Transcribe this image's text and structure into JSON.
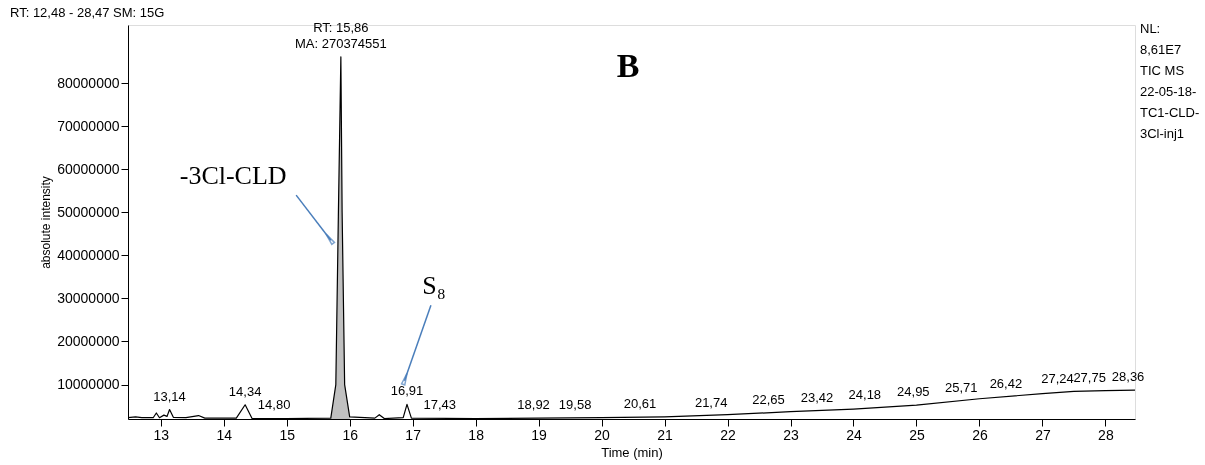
{
  "chart_data": {
    "type": "line",
    "xlabel": "Time (min)",
    "ylabel": "absolute intensity",
    "series": [
      {
        "color": "#000000",
        "x": [
          12.48,
          12.6,
          12.7,
          12.88,
          12.93,
          12.98,
          13.05,
          13.1,
          13.14,
          13.2,
          13.4,
          13.6,
          13.7,
          14.2,
          14.34,
          14.45,
          15.0,
          15.7,
          15.78,
          15.82,
          15.86,
          15.88,
          15.92,
          16.0,
          16.4,
          16.47,
          16.55,
          16.85,
          16.91,
          16.98,
          18.0,
          19.0,
          20.0,
          21.0,
          22.0,
          23.0,
          24.0,
          25.0,
          26.0,
          27.0,
          27.5,
          28.0,
          28.47
        ],
        "values": [
          2300000,
          2500000,
          2300000,
          2300000,
          3400000,
          2300000,
          2900000,
          2600000,
          4200000,
          2400000,
          2300000,
          2800000,
          2200000,
          2200000,
          5300000,
          2100000,
          2100000,
          2200000,
          10000000,
          49000000,
          86100000,
          50000000,
          10000000,
          2500000,
          2200000,
          3000000,
          2100000,
          2300000,
          5400000,
          2200000,
          2100000,
          2200000,
          2300000,
          2500000,
          3000000,
          3700000,
          4300000,
          5200000,
          6700000,
          7900000,
          8400000,
          8600000,
          8700000
        ]
      },
      {
        "type": "area",
        "color": "#c0c0c0",
        "x": [
          15.7,
          15.78,
          15.82,
          15.86,
          15.88,
          15.92,
          16.0
        ],
        "values": [
          2200000,
          10000000,
          49000000,
          86100000,
          50000000,
          10000000,
          2500000
        ]
      }
    ],
    "xlim": [
      12.48,
      28.47
    ],
    "xticks": [
      13,
      14,
      15,
      16,
      17,
      18,
      19,
      20,
      21,
      22,
      23,
      24,
      25,
      26,
      27,
      28
    ],
    "ylim": [
      2000000,
      93500000
    ],
    "yticks": [
      10000000,
      20000000,
      30000000,
      40000000,
      50000000,
      60000000,
      70000000,
      80000000
    ],
    "grid": false,
    "marker": "none",
    "line_style": "solid",
    "annotations": [
      "RT: 12,48 - 28,47   SM: 15G",
      "B",
      "NL:\n8,61E7\nTIC  MS\n22-05-18-\nTC1-CLD-\n3Cl-inj1",
      {
        "text": "-3Cl-CLD",
        "x": 15.7,
        "y": 43500000
      },
      {
        "text": "S₈",
        "x": 16.87,
        "y": 10900000
      },
      {
        "text": "RT: 15,86\nMA: 270374551",
        "x": 15.86,
        "y": 86100000
      },
      {
        "text": "13,14",
        "x": 13.14,
        "y": 4200000
      },
      {
        "text": "14,34",
        "x": 14.34,
        "y": 5300000
      },
      {
        "text": "14,80",
        "x": 14.8,
        "y": 2200000
      },
      {
        "text": "16,91",
        "x": 16.91,
        "y": 5400000
      },
      {
        "text": "17,43",
        "x": 17.43,
        "y": 2200000
      },
      {
        "text": "18,92",
        "x": 18.92,
        "y": 2200000
      },
      {
        "text": "19,58",
        "x": 19.58,
        "y": 2200000
      },
      {
        "text": "20,61",
        "x": 20.61,
        "y": 2400000
      },
      {
        "text": "21,74",
        "x": 21.74,
        "y": 2800000
      },
      {
        "text": "22,65",
        "x": 22.65,
        "y": 3400000
      },
      {
        "text": "23,42",
        "x": 23.42,
        "y": 3900000
      },
      {
        "text": "24,18",
        "x": 24.18,
        "y": 4500000
      },
      {
        "text": "24,95",
        "x": 24.95,
        "y": 5200000
      },
      {
        "text": "25,71",
        "x": 25.71,
        "y": 6100000
      },
      {
        "text": "26,42",
        "x": 26.42,
        "y": 7100000
      },
      {
        "text": "27,24",
        "x": 27.24,
        "y": 8200000
      },
      {
        "text": "27,75",
        "x": 27.75,
        "y": 8500000
      },
      {
        "text": "28,36",
        "x": 28.36,
        "y": 8700000
      }
    ]
  }
}
